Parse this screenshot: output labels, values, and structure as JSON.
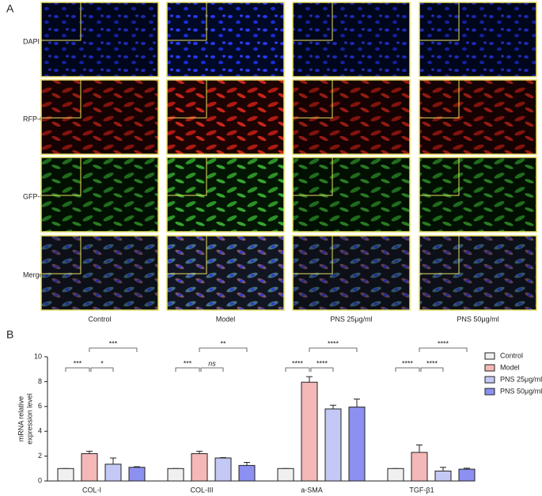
{
  "panel_a": {
    "label": "A",
    "rows": [
      "DAPI",
      "RFP-COL-Ⅰ",
      "GFP-COL-Ⅲ",
      "Merge"
    ],
    "columns": [
      "Control",
      "Model",
      "PNS 25μg/ml",
      "PNS 50μg/ml"
    ]
  },
  "panel_b": {
    "label": "B"
  },
  "chart_data": {
    "type": "bar",
    "y_label": [
      "mRNA relative",
      "expression level"
    ],
    "categories": [
      "COL-I",
      "COL-III",
      "a-SMA",
      "TGF-β1"
    ],
    "series": [
      {
        "name": "Control",
        "color": "#f0f0f0",
        "values": [
          1,
          1,
          1,
          1
        ],
        "errors": [
          0,
          0,
          0,
          0
        ]
      },
      {
        "name": "Model",
        "color": "#f4b8b8",
        "values": [
          2.2,
          2.2,
          7.95,
          2.3
        ],
        "errors": [
          0.2,
          0.2,
          0.45,
          0.6
        ]
      },
      {
        "name": "PNS 25μg/ml",
        "color": "#c4c8f4",
        "values": [
          1.35,
          1.85,
          5.8,
          0.8
        ],
        "errors": [
          0.5,
          0.03,
          0.3,
          0.3
        ]
      },
      {
        "name": "PNS 50μg/ml",
        "color": "#8c90f0",
        "values": [
          1.1,
          1.25,
          5.95,
          0.95
        ],
        "errors": [
          0.05,
          0.25,
          0.65,
          0.08
        ]
      }
    ],
    "annotations": [
      "***",
      "*",
      "***",
      "***",
      "ns",
      "**",
      "****",
      "****",
      "****",
      "****",
      "****",
      "****"
    ],
    "ylim": [
      0,
      10
    ],
    "yticks": [
      0,
      2,
      4,
      6,
      8,
      10
    ],
    "grid": false,
    "legend": "right"
  }
}
